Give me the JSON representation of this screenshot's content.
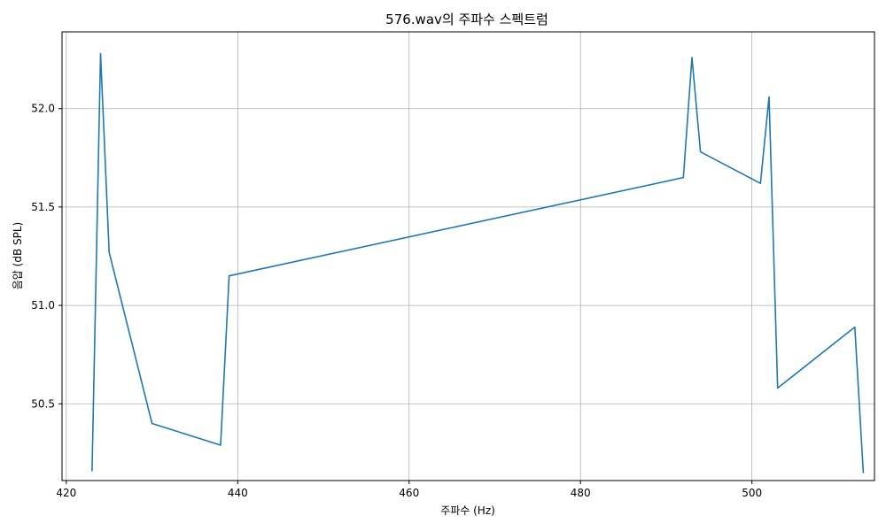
{
  "chart_data": {
    "type": "line",
    "title": "576.wav의 주파수 스펙트럼",
    "xlabel": "주파수 (Hz)",
    "ylabel": "음압 (dB SPL)",
    "xlim": [
      419.5,
      514.3
    ],
    "ylim": [
      50.11,
      52.39
    ],
    "xticks": [
      420,
      440,
      460,
      480,
      500
    ],
    "yticks": [
      50.5,
      51.0,
      51.5,
      52.0
    ],
    "xtick_labels": [
      "420",
      "440",
      "460",
      "480",
      "500"
    ],
    "ytick_labels": [
      "50.5",
      "51.0",
      "51.5",
      "52.0"
    ],
    "grid": true,
    "colors": {
      "series": "#1f77b4"
    },
    "series": [
      {
        "x": [
          423,
          424,
          425,
          430,
          438,
          439,
          492,
          493,
          494,
          501,
          502,
          503,
          512,
          513
        ],
        "values": [
          50.16,
          52.28,
          51.27,
          50.4,
          50.29,
          51.15,
          51.65,
          52.26,
          51.78,
          51.62,
          52.06,
          50.58,
          50.89,
          50.15
        ]
      }
    ]
  }
}
